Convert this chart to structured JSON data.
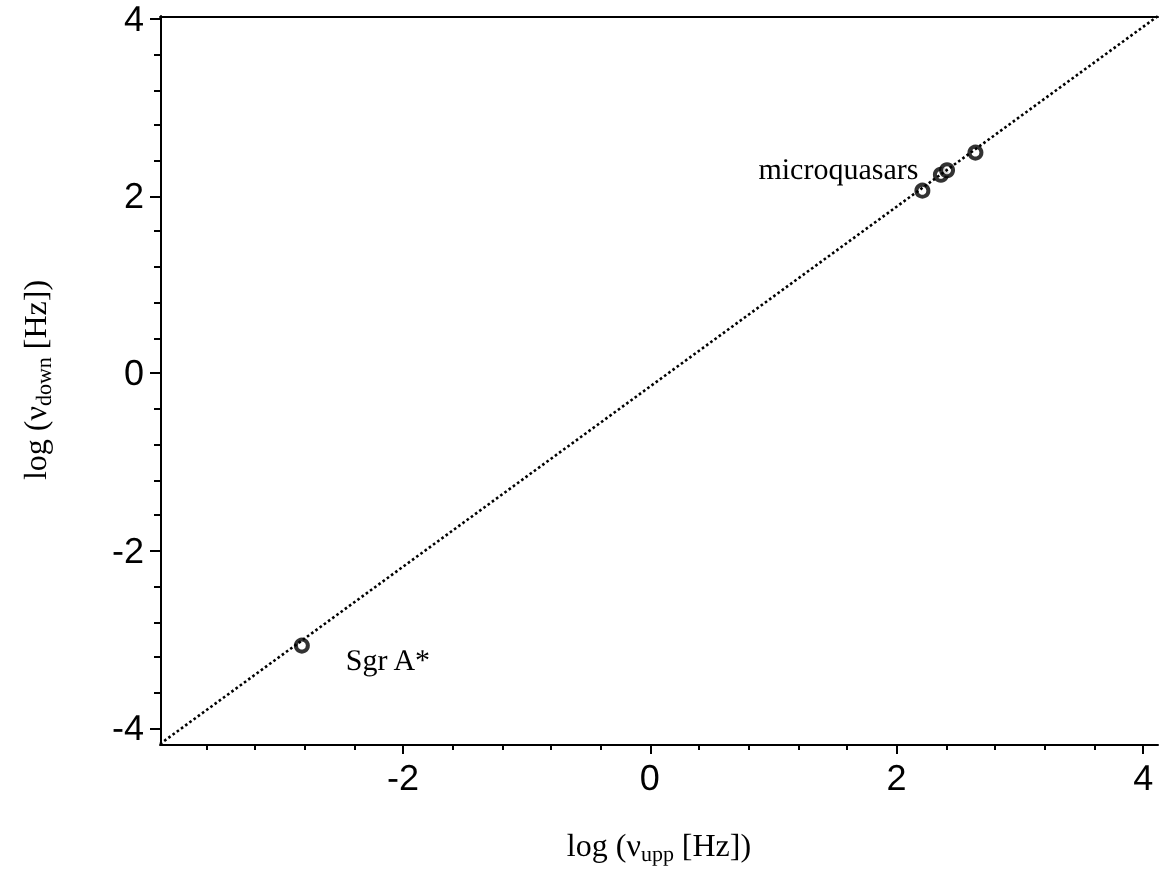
{
  "chart_data": {
    "type": "scatter",
    "xlabel": "log (ν$_{upp}$ [Hz])",
    "ylabel": "log (ν$_{down}$ [Hz])",
    "xlim": [
      -3.97,
      4.12
    ],
    "ylim": [
      -4.18,
      4.03
    ],
    "xticks": [
      -2,
      0,
      2,
      4
    ],
    "yticks": [
      -4,
      -2,
      0,
      2,
      4
    ],
    "grid": false,
    "marker": "circle",
    "series": [
      {
        "type": "line",
        "color": "#000000",
        "line_style": "dotted",
        "marker": "none",
        "x": [
          -3.97,
          4.12
        ],
        "values": [
          -4.18,
          4.03
        ]
      },
      {
        "color": "#000000",
        "x": [
          -2.82,
          2.21,
          2.36,
          2.41,
          2.64
        ],
        "values": [
          -3.07,
          2.06,
          2.24,
          2.29,
          2.49
        ]
      }
    ],
    "annotations": [
      {
        "text": "Sgr A*",
        "x": -2.82,
        "y": -3.07
      },
      {
        "text": "microquasars",
        "x": 2.21,
        "y": 2.06
      }
    ]
  }
}
